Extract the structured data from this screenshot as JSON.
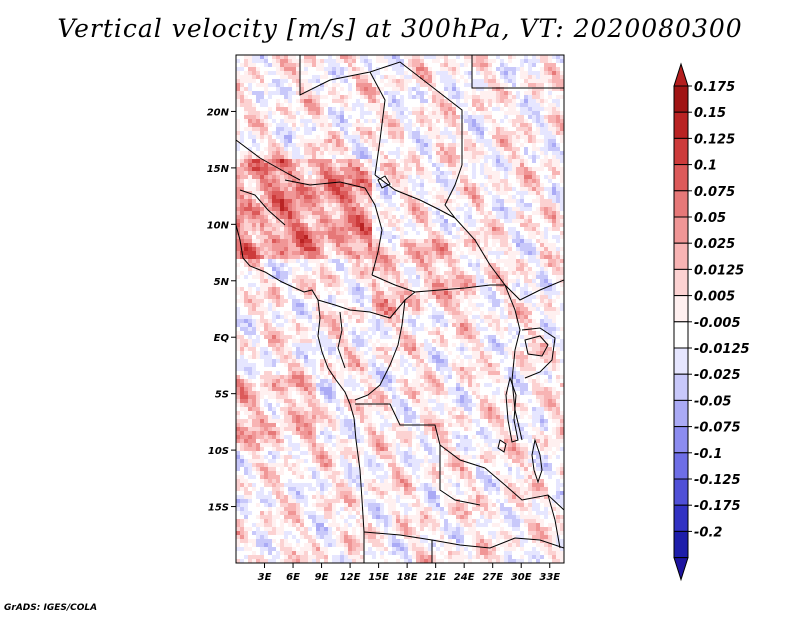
{
  "title": "Vertical velocity [m/s] at 300hPa, VT: 2020080300",
  "credit": "GrADS: IGES/COLA",
  "map": {
    "lon_range": [
      0,
      34.5
    ],
    "lat_range": [
      -20,
      25
    ],
    "lon_ticks": [
      {
        "value": 3,
        "label": "3E"
      },
      {
        "value": 6,
        "label": "6E"
      },
      {
        "value": 9,
        "label": "9E"
      },
      {
        "value": 12,
        "label": "12E"
      },
      {
        "value": 15,
        "label": "15E"
      },
      {
        "value": 18,
        "label": "18E"
      },
      {
        "value": 21,
        "label": "21E"
      },
      {
        "value": 24,
        "label": "24E"
      },
      {
        "value": 27,
        "label": "27E"
      },
      {
        "value": 30,
        "label": "30E"
      },
      {
        "value": 33,
        "label": "33E"
      }
    ],
    "lat_ticks": [
      {
        "value": 20,
        "label": "20N"
      },
      {
        "value": 15,
        "label": "15N"
      },
      {
        "value": 10,
        "label": "10N"
      },
      {
        "value": 5,
        "label": "5N"
      },
      {
        "value": 0,
        "label": "EQ"
      },
      {
        "value": -5,
        "label": "5S"
      },
      {
        "value": -10,
        "label": "10S"
      },
      {
        "value": -15,
        "label": "15S"
      }
    ]
  },
  "colorbar": {
    "levels": [
      {
        "label": "0.175",
        "color": "#a01414"
      },
      {
        "label": "0.15",
        "color": "#b92323"
      },
      {
        "label": "0.125",
        "color": "#cd3b3b"
      },
      {
        "label": "0.1",
        "color": "#dc5a5a"
      },
      {
        "label": "0.075",
        "color": "#e67878"
      },
      {
        "label": "0.05",
        "color": "#f09696"
      },
      {
        "label": "0.025",
        "color": "#f8b4b4"
      },
      {
        "label": "0.0125",
        "color": "#fcd2d2"
      },
      {
        "label": "0.005",
        "color": "#fff0f0"
      },
      {
        "label": "-0.005",
        "color": "#ffffff"
      },
      {
        "label": "-0.0125",
        "color": "#e6e6ff"
      },
      {
        "label": "-0.025",
        "color": "#c8c8fa"
      },
      {
        "label": "-0.05",
        "color": "#aaaaf5"
      },
      {
        "label": "-0.075",
        "color": "#8c8cf0"
      },
      {
        "label": "-0.1",
        "color": "#6e6ee6"
      },
      {
        "label": "-0.125",
        "color": "#5050d7"
      },
      {
        "label": "-0.175",
        "color": "#3232c3"
      },
      {
        "label": "-0.2",
        "color": "#1e1eaa"
      }
    ],
    "top_color": "#b41e1e",
    "bottom_color": "#1e14a0"
  }
}
